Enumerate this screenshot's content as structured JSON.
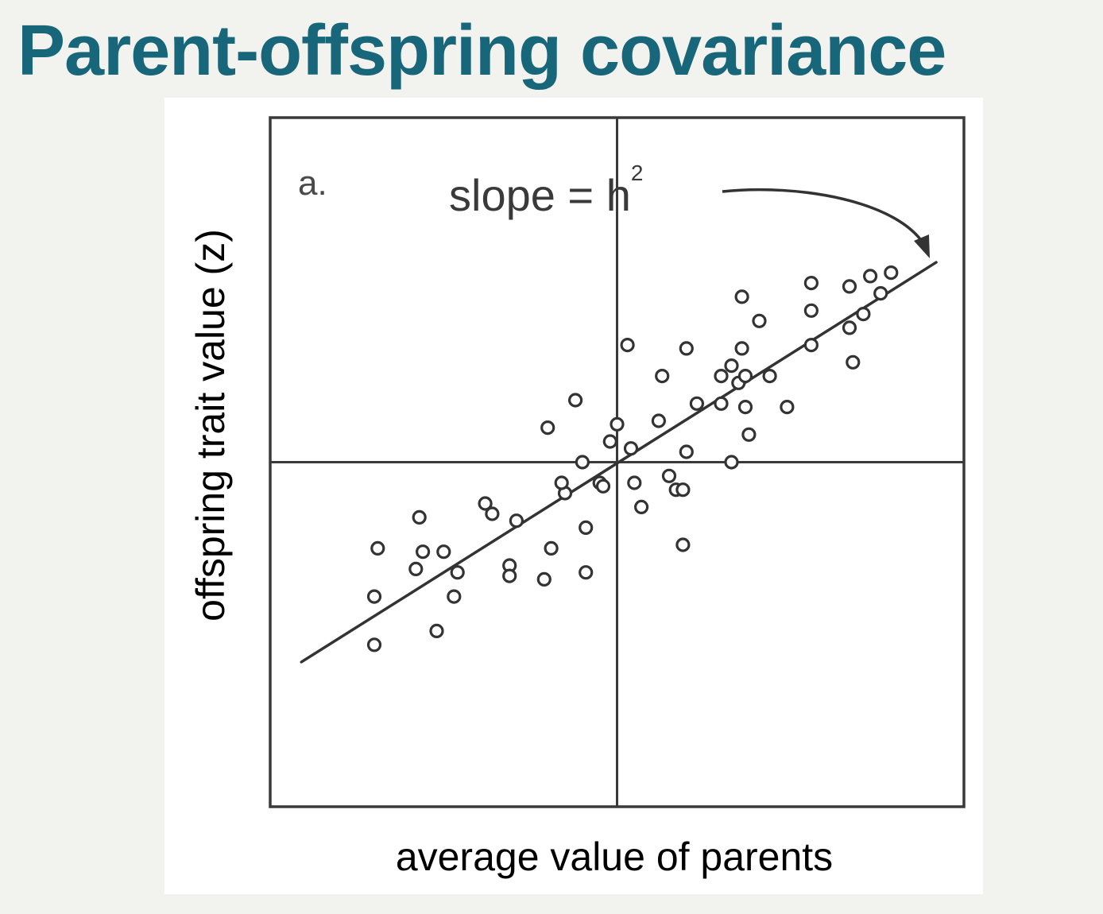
{
  "slide": {
    "title": "Parent-offspring covariance"
  },
  "chart_data": {
    "type": "scatter",
    "title": "",
    "panel_label": "a.",
    "annotation": {
      "text": "slope = h",
      "superscript": "2"
    },
    "xlabel": "average value of parents",
    "ylabel": "offspring trait value (z)",
    "xlim": [
      -1,
      1
    ],
    "ylim": [
      -1,
      1
    ],
    "grid": false,
    "axes_cross_at_mean": true,
    "colors": {
      "ink": "#333333",
      "title": "#17667a"
    },
    "regression_line": {
      "x": [
        -0.91,
        0.92
      ],
      "y": [
        -0.58,
        0.58
      ]
    },
    "series": [
      {
        "marker": "open-circle",
        "points": [
          [
            -0.69,
            -0.25
          ],
          [
            -0.7,
            -0.39
          ],
          [
            -0.7,
            -0.53
          ],
          [
            -0.52,
            -0.49
          ],
          [
            -0.57,
            -0.16
          ],
          [
            -0.56,
            -0.26
          ],
          [
            -0.5,
            -0.26
          ],
          [
            -0.46,
            -0.32
          ],
          [
            -0.47,
            -0.39
          ],
          [
            -0.58,
            -0.31
          ],
          [
            -0.38,
            -0.12
          ],
          [
            -0.36,
            -0.15
          ],
          [
            -0.29,
            -0.17
          ],
          [
            -0.31,
            -0.3
          ],
          [
            -0.31,
            -0.33
          ],
          [
            -0.19,
            -0.25
          ],
          [
            -0.21,
            -0.34
          ],
          [
            -0.09,
            -0.32
          ],
          [
            -0.09,
            -0.19
          ],
          [
            -0.15,
            -0.09
          ],
          [
            -0.16,
            -0.06
          ],
          [
            -0.1,
            0.0
          ],
          [
            -0.05,
            -0.06
          ],
          [
            -0.04,
            -0.07
          ],
          [
            -0.02,
            0.06
          ],
          [
            -0.2,
            0.1
          ],
          [
            -0.12,
            0.18
          ],
          [
            0.0,
            0.11
          ],
          [
            0.04,
            0.04
          ],
          [
            0.05,
            -0.06
          ],
          [
            0.07,
            -0.13
          ],
          [
            0.15,
            -0.04
          ],
          [
            0.17,
            -0.08
          ],
          [
            0.19,
            -0.08
          ],
          [
            0.19,
            -0.24
          ],
          [
            0.12,
            0.12
          ],
          [
            0.2,
            0.03
          ],
          [
            0.23,
            0.17
          ],
          [
            0.33,
            0.0
          ],
          [
            0.38,
            0.08
          ],
          [
            0.37,
            0.16
          ],
          [
            0.3,
            0.17
          ],
          [
            0.35,
            0.23
          ],
          [
            0.37,
            0.25
          ],
          [
            0.44,
            0.25
          ],
          [
            0.49,
            0.16
          ],
          [
            0.3,
            0.25
          ],
          [
            0.33,
            0.28
          ],
          [
            0.36,
            0.33
          ],
          [
            0.13,
            0.25
          ],
          [
            0.03,
            0.34
          ],
          [
            0.2,
            0.33
          ],
          [
            0.36,
            0.48
          ],
          [
            0.41,
            0.41
          ],
          [
            0.56,
            0.34
          ],
          [
            0.56,
            0.44
          ],
          [
            0.56,
            0.52
          ],
          [
            0.68,
            0.29
          ],
          [
            0.67,
            0.39
          ],
          [
            0.67,
            0.51
          ],
          [
            0.71,
            0.43
          ],
          [
            0.73,
            0.54
          ],
          [
            0.76,
            0.49
          ],
          [
            0.79,
            0.55
          ]
        ]
      }
    ]
  }
}
